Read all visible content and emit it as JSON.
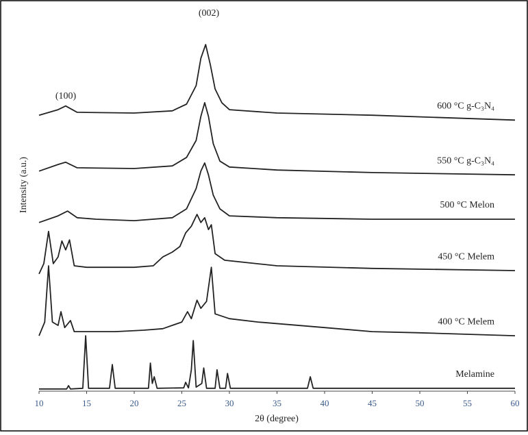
{
  "chart_data": {
    "type": "line",
    "xlabel": "2θ (degree)",
    "ylabel": "Intensity (a.u.)",
    "annotations": [
      "(100)",
      "(002)"
    ],
    "xlim": [
      10,
      60
    ],
    "xticks": [
      10,
      15,
      20,
      25,
      30,
      35,
      40,
      45,
      50,
      55,
      60
    ],
    "ylim": [
      0,
      100
    ],
    "grid": false,
    "series": [
      {
        "name": "600 °C g-C₃N₄",
        "color": "#222222",
        "x": [
          10,
          12,
          12.8,
          14,
          20,
          24,
          25.5,
          26.5,
          27,
          27.5,
          28,
          28.5,
          29.2,
          30,
          35,
          45,
          60
        ],
        "values": [
          74.4,
          75.9,
          76.9,
          75.2,
          75,
          75.6,
          77.4,
          82.4,
          89.8,
          93.5,
          88,
          81.5,
          77.8,
          75.9,
          75,
          74.4,
          73.1
        ]
      },
      {
        "name": "550 °C g-C₃N₄",
        "color": "#222222",
        "x": [
          10,
          12,
          12.8,
          14,
          20,
          24,
          25.5,
          26.5,
          27,
          27.4,
          27.8,
          28.3,
          29,
          30,
          35,
          45,
          60
        ],
        "values": [
          59.3,
          61.1,
          61.7,
          60.2,
          60,
          60.7,
          63,
          67.6,
          74.1,
          77.8,
          74.1,
          66.7,
          62,
          60.4,
          59.6,
          58.9,
          58.3
        ]
      },
      {
        "name": "500 °C Melon",
        "color": "#222222",
        "x": [
          10,
          12,
          13,
          14,
          16,
          20,
          24,
          25.5,
          26.5,
          27,
          27.4,
          27.8,
          28.3,
          29,
          30,
          35,
          45,
          60
        ],
        "values": [
          45.4,
          47.2,
          48.5,
          46.7,
          46.3,
          45.9,
          46.7,
          49.1,
          54.6,
          59.3,
          61.5,
          58.3,
          52.8,
          49.1,
          47.2,
          46.7,
          46.3,
          46.3
        ]
      },
      {
        "name": "450 °C Melem",
        "color": "#222222",
        "x": [
          10,
          10.5,
          11,
          11.5,
          12,
          12.4,
          12.8,
          13.2,
          13.7,
          15,
          20,
          22,
          23,
          24,
          24.8,
          25.4,
          26,
          26.6,
          27,
          27.4,
          27.8,
          28.1,
          28.5,
          29.5,
          35,
          45,
          60
        ],
        "values": [
          31.5,
          34.3,
          43,
          34.3,
          36.1,
          40.4,
          38,
          40.7,
          33.7,
          33.3,
          33.3,
          33.7,
          36.1,
          37.4,
          38.9,
          42.6,
          44.4,
          47.6,
          45.4,
          46.7,
          43.5,
          44.8,
          37,
          35.2,
          33.7,
          33,
          32.4
        ]
      },
      {
        "name": "400 °C Melem",
        "color": "#222222",
        "x": [
          10,
          10.6,
          11,
          11.4,
          12,
          12.3,
          12.7,
          13.3,
          13.7,
          18,
          21,
          23,
          25,
          25.6,
          26,
          26.6,
          27,
          27.6,
          28.1,
          28.5,
          30,
          33,
          40,
          45,
          50,
          60
        ],
        "values": [
          14.8,
          18.5,
          33.7,
          18.5,
          17.6,
          21.3,
          17,
          18.9,
          15.9,
          15.9,
          16.3,
          16.7,
          18.5,
          21.3,
          19.4,
          24.4,
          22.2,
          24.1,
          33.3,
          20.7,
          19.4,
          18.5,
          17,
          15.9,
          15.6,
          14.8
        ]
      },
      {
        "name": "Melamine",
        "color": "#222222",
        "x": [
          10,
          12.9,
          13.1,
          13.3,
          14.6,
          14.9,
          15.2,
          17.4,
          17.7,
          18,
          21.5,
          21.7,
          21.9,
          22.1,
          22.4,
          25.2,
          25.4,
          25.7,
          26,
          26.2,
          26.5,
          27.1,
          27.3,
          27.6,
          28.5,
          28.7,
          29,
          29.6,
          29.8,
          30.1,
          38.2,
          38.5,
          38.8,
          60
        ],
        "values": [
          0.4,
          0.4,
          1.3,
          0.4,
          0.6,
          14.8,
          0.6,
          0.6,
          7,
          0.6,
          0.6,
          7.4,
          1.9,
          3.7,
          0.6,
          0.7,
          2.2,
          0.7,
          5.6,
          13.5,
          0.9,
          1.9,
          6.1,
          0.6,
          0.6,
          5.6,
          0.6,
          0.6,
          4.6,
          0.6,
          0.6,
          3.7,
          0.6,
          0.6
        ]
      }
    ]
  }
}
